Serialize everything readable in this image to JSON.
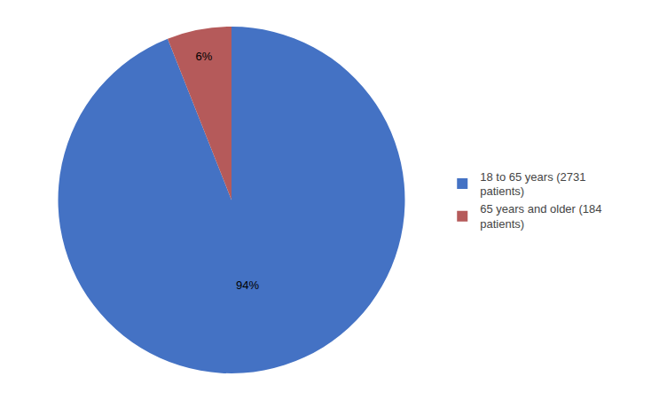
{
  "chart_data": {
    "type": "pie",
    "categories": [
      "18 to 65 years (2731\npatients)",
      "65 years and older (184\npatients)"
    ],
    "values": [
      94,
      6
    ],
    "value_labels": [
      "94%",
      "6%"
    ],
    "colors": [
      "#4472C4",
      "#B55A5A"
    ],
    "data_labels": true,
    "legend": "right"
  }
}
